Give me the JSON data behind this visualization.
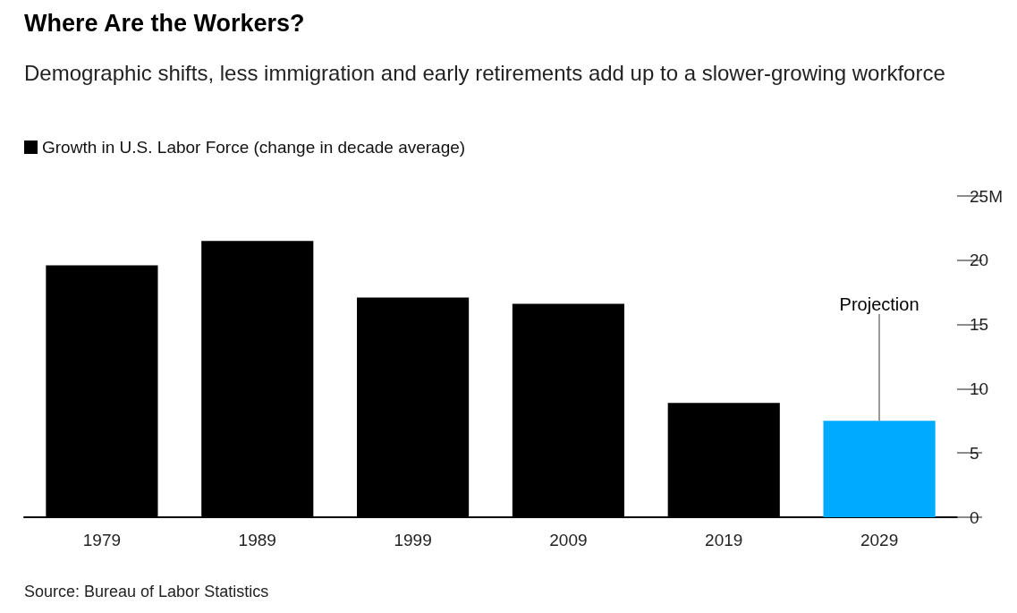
{
  "chart_data": {
    "type": "bar",
    "title": "Where Are the Workers?",
    "subtitle": "Demographic shifts, less immigration and early retirements add up to a slower-growing workforce",
    "categories": [
      "1979",
      "1989",
      "1999",
      "2009",
      "2019",
      "2029"
    ],
    "series": [
      {
        "name": "Growth in U.S. Labor Force (change in decade average)",
        "color": "#000000",
        "colors": [
          "#000000",
          "#000000",
          "#000000",
          "#000000",
          "#000000",
          "#00aaff"
        ],
        "values": [
          19.6,
          21.5,
          17.1,
          16.6,
          8.9,
          7.5
        ]
      }
    ],
    "ylim": [
      0,
      25
    ],
    "yticks": [
      0,
      5,
      10,
      15,
      20,
      {
        "value": 25,
        "label": "25M"
      }
    ],
    "grid": false,
    "legend": "top left",
    "annotations": [
      {
        "text": "Projection",
        "x": "2029",
        "y": 7.5
      },
      "Source: Bureau of Labor Statistics"
    ]
  }
}
